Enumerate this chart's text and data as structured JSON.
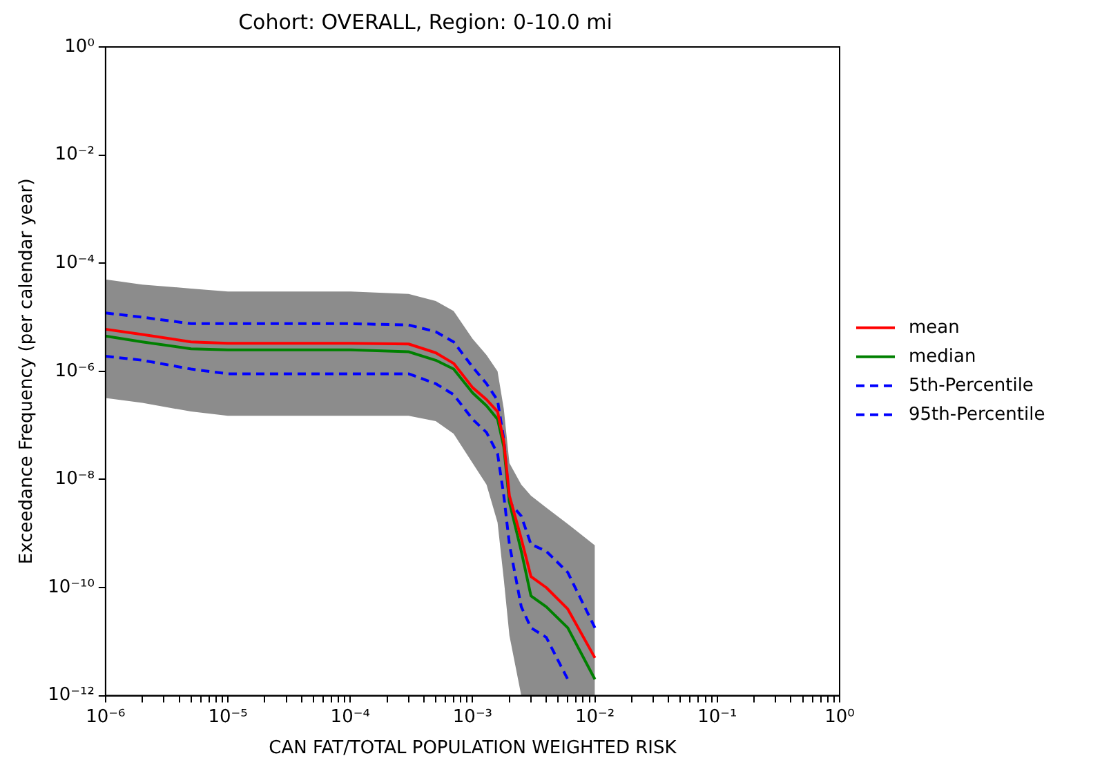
{
  "chart_data": {
    "type": "line",
    "title": "Cohort: OVERALL, Region: 0-10.0 mi",
    "xlabel": "CAN FAT/TOTAL POPULATION WEIGHTED RISK",
    "ylabel": "Exceedance Frequency (per calendar year)",
    "log": "xy",
    "grid": false,
    "legend": "right",
    "line_style": "solid",
    "marker": "none",
    "x": [
      1e-06,
      2e-06,
      5e-06,
      1e-05,
      0.0001,
      0.0003,
      0.0005,
      0.0007,
      0.001,
      0.0013,
      0.0016,
      0.0018,
      0.002,
      0.0025,
      0.003,
      0.004,
      0.006,
      0.01
    ],
    "series": [
      {
        "name": "mean",
        "color": "#ff0000",
        "values": [
          6e-06,
          4.8e-06,
          3.5e-06,
          3.3e-06,
          3.3e-06,
          3.2e-06,
          2.2e-06,
          1.4e-06,
          5e-07,
          3e-07,
          1.8e-07,
          5e-08,
          5e-09,
          8e-10,
          1.6e-10,
          1e-10,
          4e-11,
          5e-12
        ]
      },
      {
        "name": "median",
        "color": "#008000",
        "values": [
          4.5e-06,
          3.5e-06,
          2.6e-06,
          2.5e-06,
          2.5e-06,
          2.3e-06,
          1.6e-06,
          1.1e-06,
          4e-07,
          2.3e-07,
          1.3e-07,
          4e-08,
          3.8e-09,
          4.7e-10,
          7e-11,
          4.4e-11,
          1.8e-11,
          2e-12
        ],
        "lower": [
          3.2e-07,
          2.6e-07,
          1.8e-07,
          1.5e-07,
          1.5e-07,
          1.5e-07,
          1.2e-07,
          7e-08,
          2e-08,
          8e-09,
          1.6e-09,
          1.4e-10,
          1.3e-11,
          1e-12,
          1e-12,
          1e-12,
          1e-12,
          1e-12
        ],
        "upper": [
          5e-05,
          4e-05,
          3.4e-05,
          3e-05,
          3e-05,
          2.7e-05,
          2e-05,
          1.3e-05,
          4e-06,
          2e-06,
          1e-06,
          2e-07,
          2e-08,
          8e-09,
          5e-09,
          3e-09,
          1.5e-09,
          6e-10
        ]
      },
      {
        "name": "5th-Percentile",
        "color": "#0000ff",
        "line_style": "dashed",
        "values": [
          1.9e-06,
          1.6e-06,
          1.1e-06,
          9e-07,
          9e-07,
          9e-07,
          5.9e-07,
          3.7e-07,
          1.3e-07,
          7.4e-08,
          3e-08,
          5e-09,
          6.3e-10,
          4.4e-11,
          1.8e-11,
          1.2e-11,
          2e-12,
          null
        ]
      },
      {
        "name": "95th-Percentile",
        "color": "#0000ff",
        "line_style": "dashed",
        "values": [
          1.2e-05,
          1e-05,
          7.6e-06,
          7.6e-06,
          7.6e-06,
          7.2e-06,
          5.4e-06,
          3.5e-06,
          1.2e-06,
          5.9e-07,
          2.9e-07,
          5.5e-08,
          3.8e-09,
          2.1e-09,
          6.3e-10,
          4.7e-10,
          1.9e-10,
          1.8e-11
        ]
      }
    ],
    "xlim": [
      1e-06,
      1
    ],
    "ylim": [
      1e-12,
      1
    ],
    "xticks": [
      {
        "value": 1e-06,
        "label": "10⁻⁶"
      },
      {
        "value": 2e-06,
        "label": null
      },
      {
        "value": 3e-06,
        "label": null
      },
      {
        "value": 4e-06,
        "label": null
      },
      {
        "value": 5e-06,
        "label": null
      },
      {
        "value": 6e-06,
        "label": null
      },
      {
        "value": 7e-06,
        "label": null
      },
      {
        "value": 8e-06,
        "label": null
      },
      {
        "value": 9e-06,
        "label": null
      },
      {
        "value": 1e-05,
        "label": "10⁻⁵"
      },
      {
        "value": 2e-05,
        "label": null
      },
      {
        "value": 3e-05,
        "label": null
      },
      {
        "value": 4e-05,
        "label": null
      },
      {
        "value": 5e-05,
        "label": null
      },
      {
        "value": 6e-05,
        "label": null
      },
      {
        "value": 7e-05,
        "label": null
      },
      {
        "value": 8e-05,
        "label": null
      },
      {
        "value": 9e-05,
        "label": null
      },
      {
        "value": 0.0001,
        "label": "10⁻⁴"
      },
      {
        "value": 0.0002,
        "label": null
      },
      {
        "value": 0.0003,
        "label": null
      },
      {
        "value": 0.0004,
        "label": null
      },
      {
        "value": 0.0005,
        "label": null
      },
      {
        "value": 0.0006,
        "label": null
      },
      {
        "value": 0.0007,
        "label": null
      },
      {
        "value": 0.0008,
        "label": null
      },
      {
        "value": 0.0009,
        "label": null
      },
      {
        "value": 0.001,
        "label": "10⁻³"
      },
      {
        "value": 0.002,
        "label": null
      },
      {
        "value": 0.003,
        "label": null
      },
      {
        "value": 0.004,
        "label": null
      },
      {
        "value": 0.005,
        "label": null
      },
      {
        "value": 0.006,
        "label": null
      },
      {
        "value": 0.007,
        "label": null
      },
      {
        "value": 0.008,
        "label": null
      },
      {
        "value": 0.009,
        "label": null
      },
      {
        "value": 0.01,
        "label": "10⁻²"
      },
      {
        "value": 0.02,
        "label": null
      },
      {
        "value": 0.03,
        "label": null
      },
      {
        "value": 0.04,
        "label": null
      },
      {
        "value": 0.05,
        "label": null
      },
      {
        "value": 0.06,
        "label": null
      },
      {
        "value": 0.07,
        "label": null
      },
      {
        "value": 0.08,
        "label": null
      },
      {
        "value": 0.09,
        "label": null
      },
      {
        "value": 0.1,
        "label": "10⁻¹"
      },
      {
        "value": 0.2,
        "label": null
      },
      {
        "value": 0.3,
        "label": null
      },
      {
        "value": 0.4,
        "label": null
      },
      {
        "value": 0.5,
        "label": null
      },
      {
        "value": 0.6,
        "label": null
      },
      {
        "value": 0.7,
        "label": null
      },
      {
        "value": 0.8,
        "label": null
      },
      {
        "value": 0.9,
        "label": null
      },
      {
        "value": 1,
        "label": "10⁰"
      }
    ],
    "yticks": [
      {
        "value": 1e-12,
        "label": "10⁻¹²"
      },
      {
        "value": 1e-10,
        "label": "10⁻¹⁰"
      },
      {
        "value": 1e-08,
        "label": "10⁻⁸"
      },
      {
        "value": 1e-06,
        "label": "10⁻⁶"
      },
      {
        "value": 0.0001,
        "label": "10⁻⁴"
      },
      {
        "value": 0.01,
        "label": "10⁻²"
      },
      {
        "value": 1,
        "label": "10⁰"
      }
    ]
  }
}
